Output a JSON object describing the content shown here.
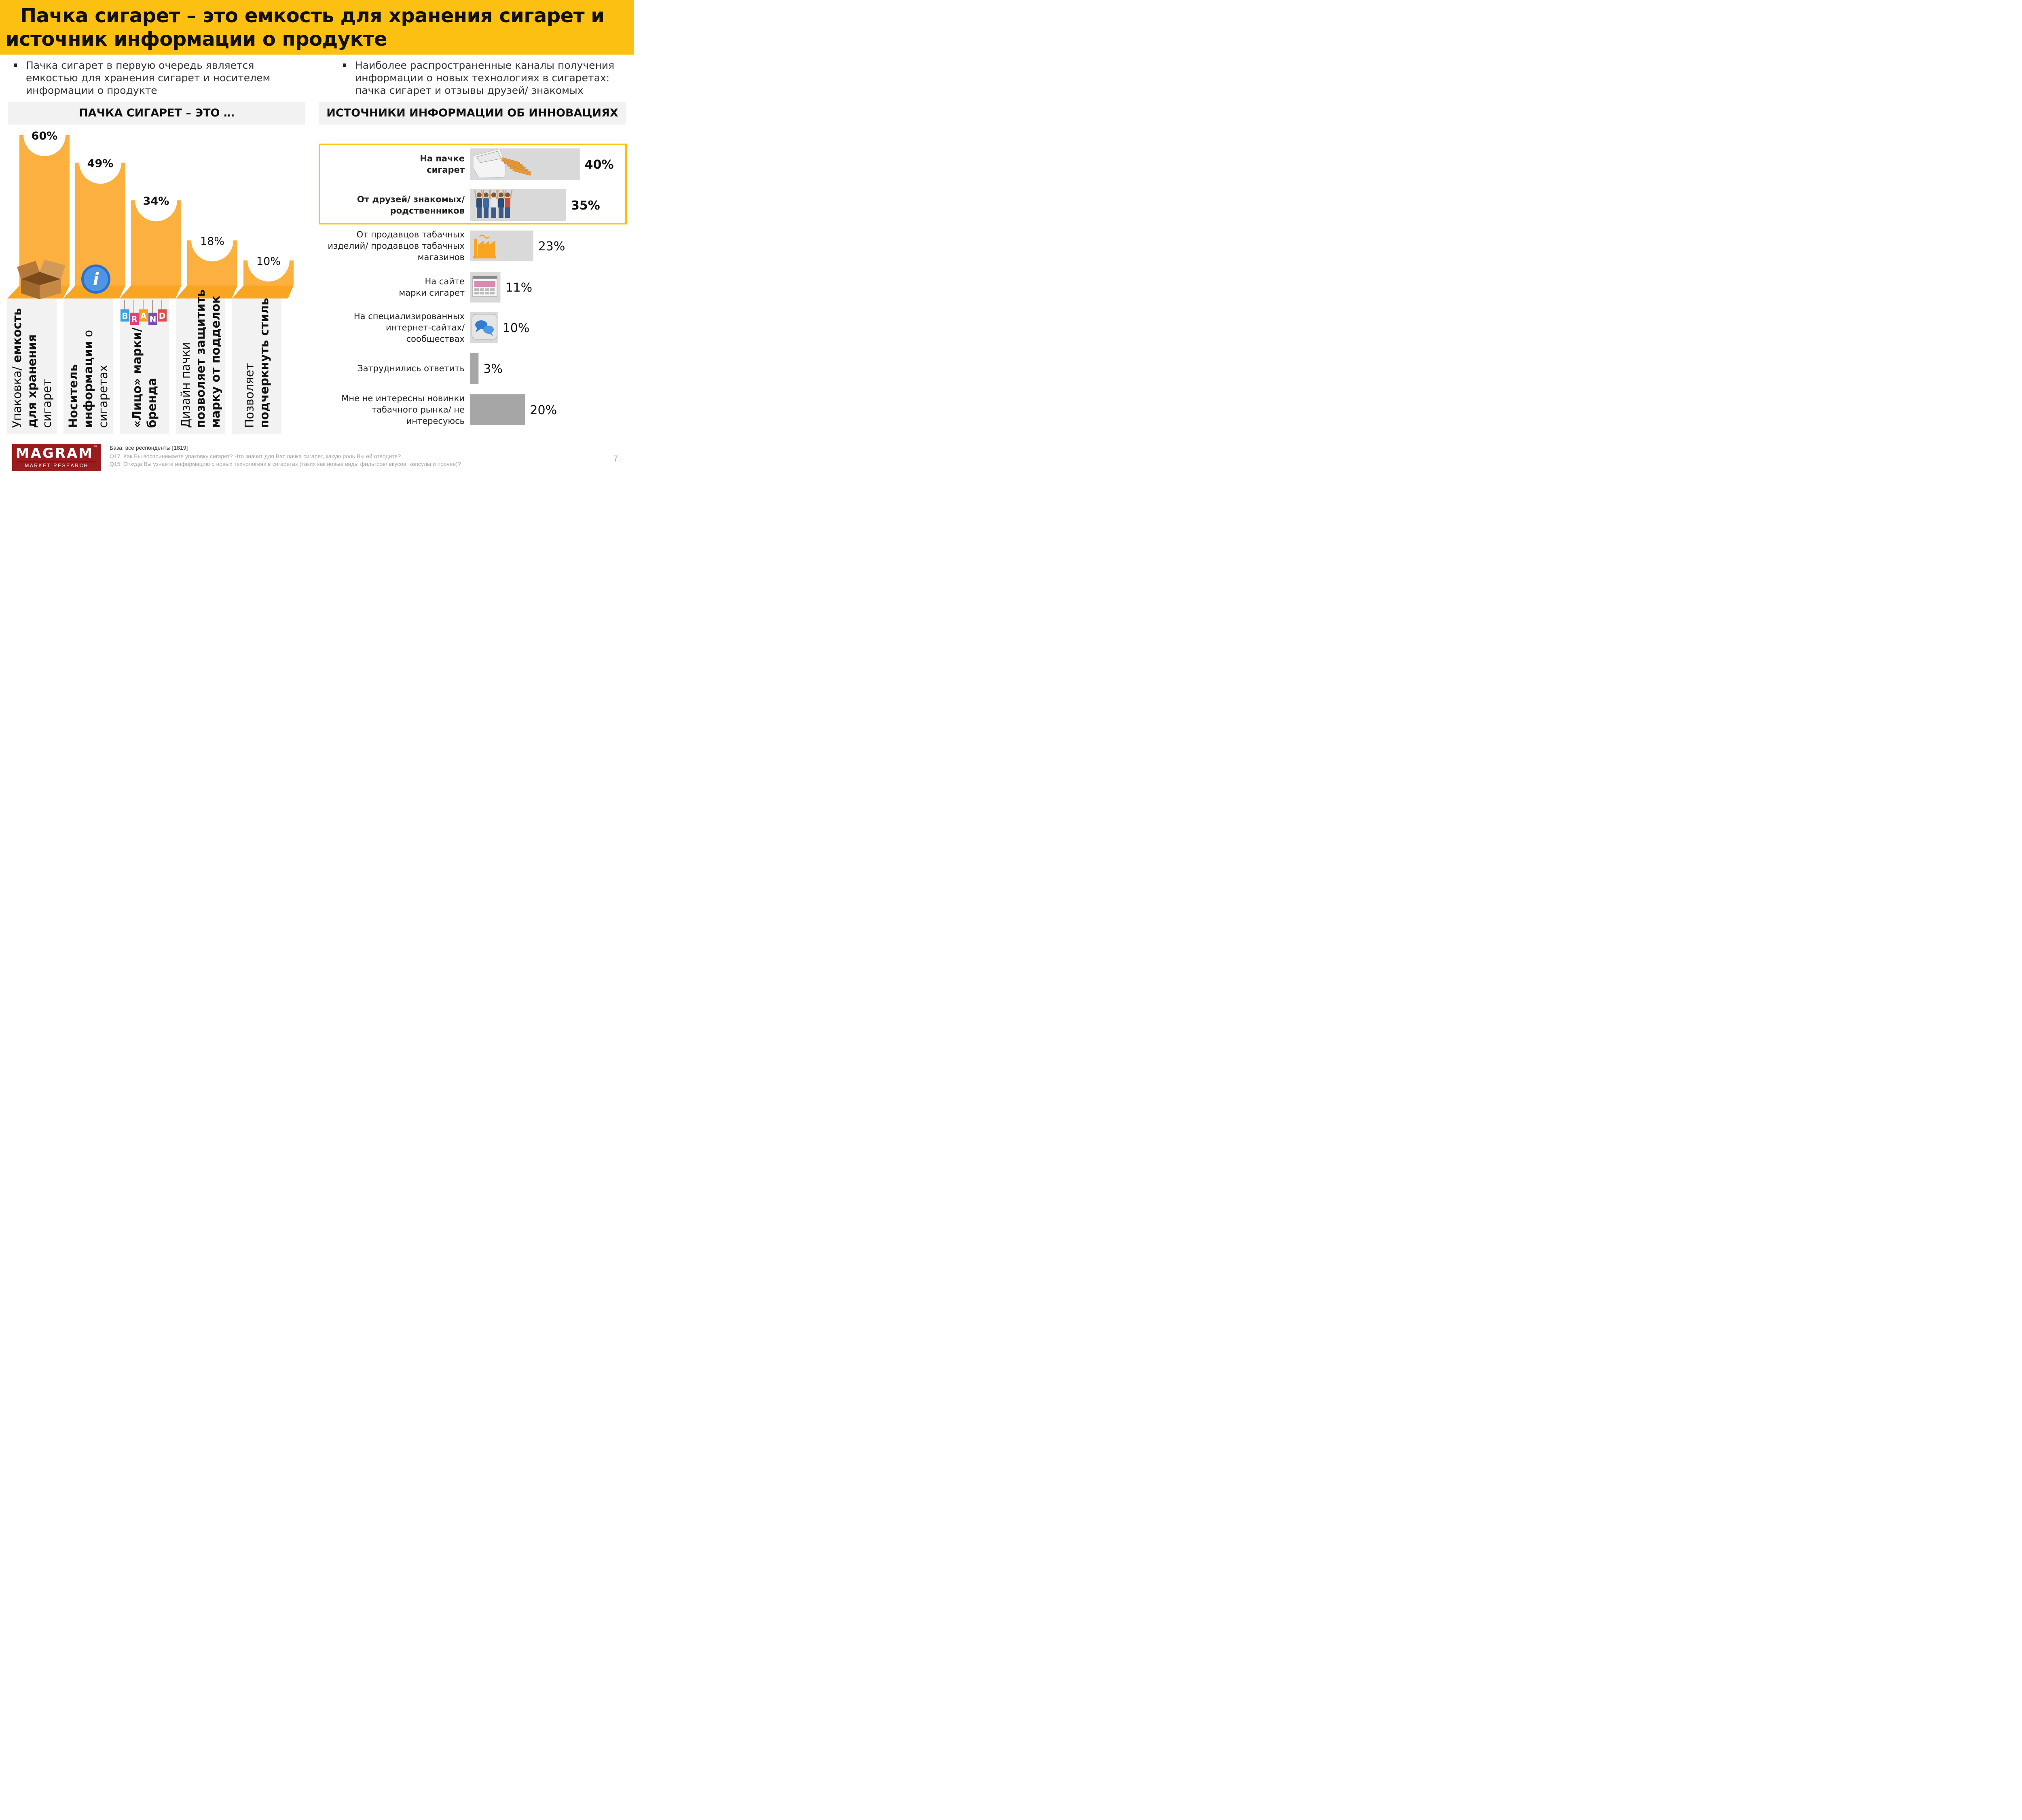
{
  "header": {
    "title_line1": "Пачка сигарет – это емкость для хранения сигарет и",
    "title_line2": "источник информации о продукте"
  },
  "left": {
    "bullet": [
      "Пачка сигарет в первую очередь является",
      "емкостью для хранения сигарет и носителем",
      "информации о продукте"
    ],
    "panel_title": "ПАЧКА СИГАРЕТ – ЭТО …"
  },
  "right": {
    "bullet": [
      "Наиболее распространенные каналы получения",
      "информации о новых технологиях в сигаретах:",
      "пачка сигарет и отзывы друзей/ знакомых"
    ],
    "panel_title": "ИСТОЧНИКИ ИНФОРМАЦИИ ОБ ИННОВАЦИЯХ"
  },
  "chart_data": [
    {
      "type": "bar",
      "title": "ПАЧКА СИГАРЕТ – ЭТО …",
      "unit": "%",
      "ylim": [
        0,
        60
      ],
      "bars": [
        {
          "value": 60,
          "value_label": "60%",
          "bold": true,
          "icon": "cardboard-box-icon",
          "label_lines": [
            {
              "text": "Упаковка/ ",
              "bold": false
            },
            {
              "text": "емкость",
              "bold": true
            },
            {
              "text": "для хранения",
              "bold": true
            },
            {
              "text": "сигарет",
              "bold": false
            }
          ]
        },
        {
          "value": 49,
          "value_label": "49%",
          "bold": true,
          "icon": "info-icon",
          "label_lines": [
            {
              "text": "Носитель",
              "bold": true
            },
            {
              "text": "информации",
              "bold": true
            },
            {
              "text": " о",
              "bold": false
            },
            {
              "text": "сигаретах",
              "bold": false
            }
          ]
        },
        {
          "value": 34,
          "value_label": "34%",
          "bold": true,
          "icon": "brand-tags-icon",
          "icon_text": [
            "B",
            "R",
            "A",
            "N",
            "D"
          ],
          "label_lines": [
            {
              "text": "«Лицо» марки/",
              "bold": true
            },
            {
              "text": "бренда",
              "bold": true
            }
          ]
        },
        {
          "value": 18,
          "value_label": "18%",
          "bold": false,
          "label_lines": [
            {
              "text": "Дизайн пачки",
              "bold": false
            },
            {
              "text": "позволяет защитить",
              "bold": true
            },
            {
              "text": "марку от подделок",
              "bold": true
            }
          ]
        },
        {
          "value": 10,
          "value_label": "10%",
          "bold": false,
          "label_lines": [
            {
              "text": "Позволяет",
              "bold": false
            },
            {
              "text": "подчеркнуть стиль",
              "bold": true
            }
          ]
        }
      ],
      "colors": {
        "bar": "#fbb040",
        "floor": "#f9a521",
        "label_bg": "#f2f2f2"
      }
    },
    {
      "type": "bar",
      "orientation": "horizontal",
      "title": "ИСТОЧНИКИ ИНФОРМАЦИИ ОБ ИННОВАЦИЯХ",
      "unit": "%",
      "xlim": [
        0,
        40
      ],
      "bars": [
        {
          "label_lines": [
            "На пачке",
            "сигарет"
          ],
          "value": 40,
          "value_label": "40%",
          "bold": true,
          "icon": "cigarette-pack-icon",
          "color": "#d9d9d9"
        },
        {
          "label_lines": [
            "От друзей/ знакомых/",
            "родственников"
          ],
          "value": 35,
          "value_label": "35%",
          "bold": true,
          "icon": "friends-group-icon",
          "color": "#d9d9d9"
        },
        {
          "label_lines": [
            "От продавцов табачных",
            "изделий/ продавцов табачных",
            "магазинов"
          ],
          "value": 23,
          "value_label": "23%",
          "bold": false,
          "icon": "factory-icon",
          "color": "#d9d9d9"
        },
        {
          "label_lines": [
            "На сайте",
            "марки сигарет"
          ],
          "value": 11,
          "value_label": "11%",
          "bold": false,
          "icon": "website-icon",
          "color": "#d9d9d9"
        },
        {
          "label_lines": [
            "На специализированных",
            "интернет-сайтах/",
            "сообществах"
          ],
          "value": 10,
          "value_label": "10%",
          "bold": false,
          "icon": "chat-bubbles-icon",
          "color": "#d9d9d9"
        },
        {
          "label_lines": [
            "Затруднились ответить"
          ],
          "value": 3,
          "value_label": "3%",
          "bold": false,
          "color": "#a6a6a6"
        },
        {
          "label_lines": [
            "Мне не интересны новинки",
            "табачного рынка/ не",
            "интересуюсь"
          ],
          "value": 20,
          "value_label": "20%",
          "bold": false,
          "color": "#a6a6a6"
        }
      ],
      "highlight": {
        "rows": [
          0,
          1
        ],
        "color": "#fcc012"
      }
    }
  ],
  "footer": {
    "base": "База: все респонденты [1819]",
    "q17": "Q17. Как Вы воспринимаете упаковку сигарет? Что значит для Вас пачка сигарет, какую роль Вы ей отводите?",
    "q15": "Q15. Откуда Вы узнаете информацию о новых технологиях в сигаретах (таких как новые виды фильтров/ вкусов, капсулы и прочее)?",
    "page_number": "7",
    "logo_main": "MAGRAM",
    "logo_tm": "™",
    "logo_sub": "MARKET RESEARCH"
  }
}
